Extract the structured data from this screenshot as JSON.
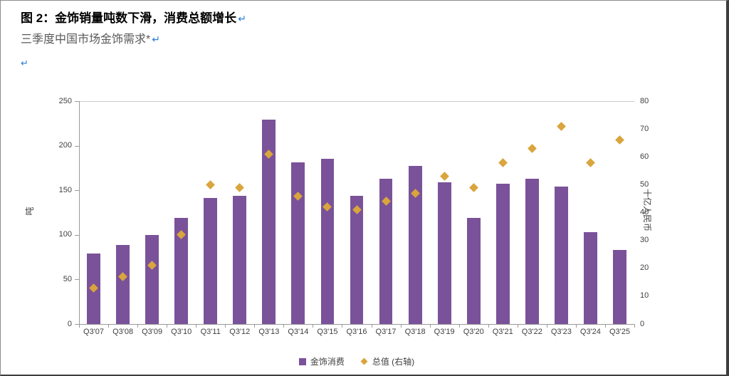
{
  "page": {
    "title": "图 2：金饰销量吨数下滑，消费总额增长",
    "subtitle": "三季度中国市场金饰需求*",
    "pilcrow": "↵"
  },
  "chart_data": {
    "type": "bar",
    "categories": [
      "Q3'07",
      "Q3'08",
      "Q3'09",
      "Q3'10",
      "Q3'11",
      "Q3'12",
      "Q3'13",
      "Q3'14",
      "Q3'15",
      "Q3'16",
      "Q3'17",
      "Q3'18",
      "Q3'19",
      "Q3'20",
      "Q3'21",
      "Q3'22",
      "Q3'23",
      "Q3'24",
      "Q3'25"
    ],
    "series": [
      {
        "name": "金饰消费",
        "type": "bar",
        "axis": "left",
        "color": "#7a5299",
        "values": [
          79,
          89,
          100,
          119,
          141,
          144,
          229,
          181,
          185,
          144,
          163,
          177,
          159,
          119,
          157,
          163,
          154,
          103,
          83
        ]
      },
      {
        "name": "总值 (右轴)",
        "type": "scatter-diamond",
        "axis": "right",
        "color": "#d9a53c",
        "values": [
          13,
          17,
          21,
          32,
          50,
          49,
          61,
          46,
          42,
          41,
          44,
          47,
          53,
          49,
          58,
          63,
          71,
          58,
          66
        ]
      }
    ],
    "left_axis": {
      "label": "吨",
      "min": 0,
      "max": 250,
      "ticks": [
        0,
        50,
        100,
        150,
        200,
        250
      ]
    },
    "right_axis": {
      "label": "十亿人民币",
      "min": 0,
      "max": 80,
      "ticks": [
        0,
        10,
        20,
        30,
        40,
        50,
        60,
        70,
        80
      ]
    },
    "legend_position": "bottom",
    "grid": "top-border-only"
  }
}
